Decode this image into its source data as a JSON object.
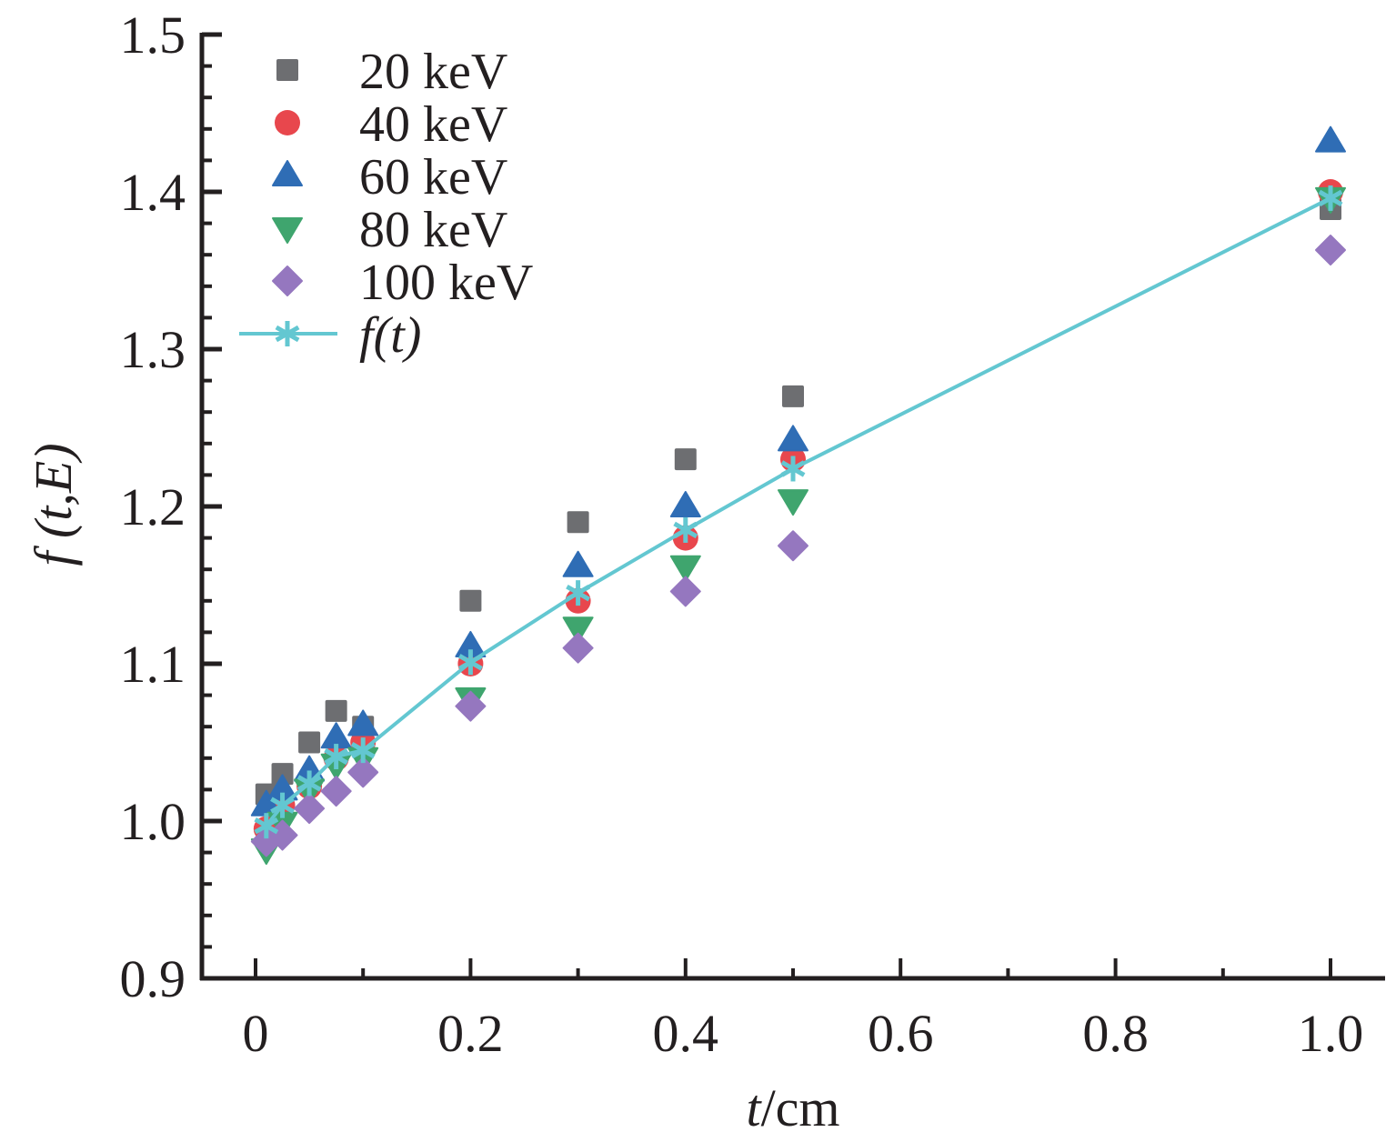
{
  "chart_data": {
    "type": "scatter",
    "title": "",
    "xlabel_italic": "t",
    "xlabel_rest": "/cm",
    "ylabel_italic": "f",
    "ylabel_rest": " (t,E)",
    "xlim": [
      -0.05,
      1.05
    ],
    "ylim": [
      0.9,
      1.5
    ],
    "xticks": [
      0,
      0.2,
      0.4,
      0.6,
      0.8,
      1.0
    ],
    "xtick_labels": [
      "0",
      "0.2",
      "0.4",
      "0.6",
      "0.8",
      "1.0"
    ],
    "xminor_step": 0.1,
    "yticks": [
      0.9,
      1.0,
      1.1,
      1.2,
      1.3,
      1.4,
      1.5
    ],
    "ytick_labels": [
      "0.9",
      "1.0",
      "1.1",
      "1.2",
      "1.3",
      "1.4",
      "1.5"
    ],
    "yminor_step": 0.02,
    "grid": false,
    "legend_position": "top-left",
    "x": [
      0.01,
      0.025,
      0.05,
      0.075,
      0.1,
      0.2,
      0.3,
      0.4,
      0.5,
      1.0
    ],
    "series": [
      {
        "name": "20 keV",
        "marker": "square",
        "color": "#6d6e71",
        "values": [
          1.017,
          1.03,
          1.05,
          1.07,
          1.06,
          1.14,
          1.19,
          1.23,
          1.27,
          1.389
        ]
      },
      {
        "name": "40 keV",
        "marker": "circle",
        "color": "#e8474d",
        "values": [
          0.995,
          1.01,
          1.022,
          1.04,
          1.05,
          1.1,
          1.14,
          1.18,
          1.23,
          1.4
        ]
      },
      {
        "name": "60 keV",
        "marker": "triangle-up",
        "color": "#2f6db5",
        "values": [
          1.01,
          1.02,
          1.032,
          1.053,
          1.061,
          1.111,
          1.162,
          1.2,
          1.242,
          1.432
        ]
      },
      {
        "name": "80 keV",
        "marker": "triangle-down",
        "color": "#3fa56e",
        "values": [
          0.982,
          0.999,
          1.02,
          1.036,
          1.04,
          1.078,
          1.123,
          1.162,
          1.204,
          1.396
        ]
      },
      {
        "name": "100 keV",
        "marker": "diamond",
        "color": "#9577bf",
        "values": [
          0.987,
          0.991,
          1.008,
          1.019,
          1.031,
          1.073,
          1.11,
          1.146,
          1.175,
          1.363
        ]
      },
      {
        "name": "f(t)",
        "name_italic": "f",
        "name_rest": "(t)",
        "marker": "asterisk-line",
        "color": "#63c7d1",
        "values": [
          0.997,
          1.01,
          1.024,
          1.041,
          1.045,
          1.101,
          1.145,
          1.185,
          1.224,
          1.396
        ]
      }
    ]
  }
}
